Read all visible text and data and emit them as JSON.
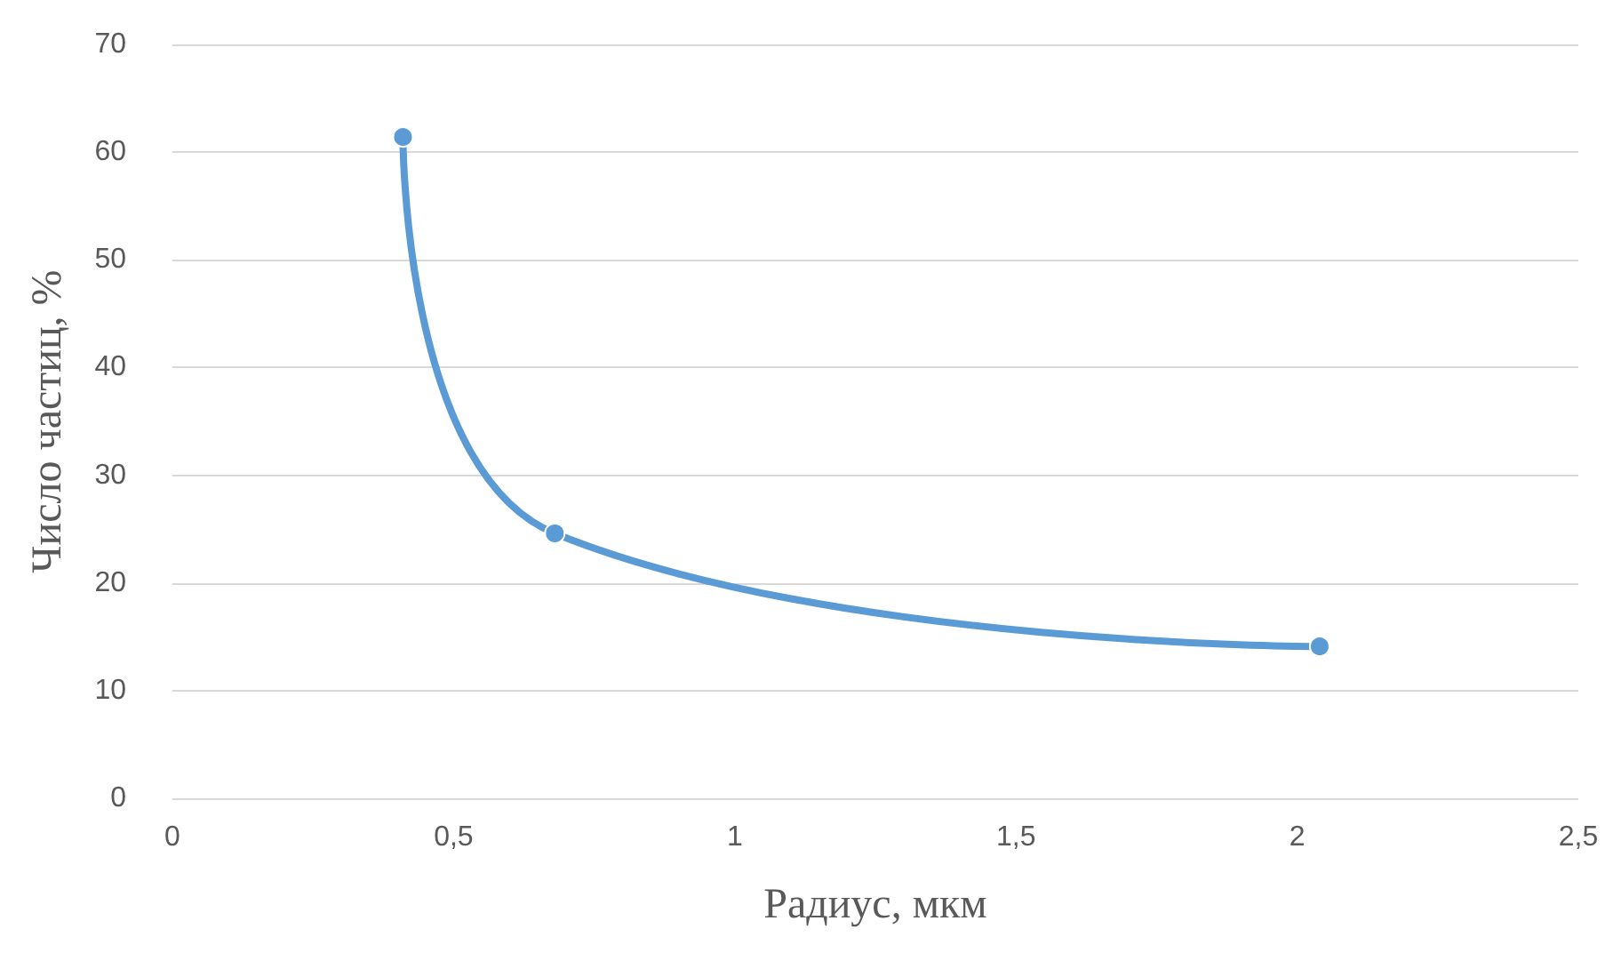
{
  "chart_data": {
    "type": "line",
    "xlabel": "Радиус, мкм",
    "ylabel": "Число частиц, %",
    "x": [
      0.41,
      0.68,
      2.04
    ],
    "series": [
      {
        "color": "#5b9bd5",
        "values": [
          61.4,
          24.6,
          14.1
        ]
      }
    ],
    "xlim": [
      0,
      2.5
    ],
    "xticks": [
      {
        "value": 0,
        "label": "0"
      },
      {
        "value": 0.5,
        "label": "0,5"
      },
      {
        "value": 1,
        "label": "1"
      },
      {
        "value": 1.5,
        "label": "1,5"
      },
      {
        "value": 2,
        "label": "2"
      },
      {
        "value": 2.5,
        "label": "2,5"
      }
    ],
    "ylim": [
      0,
      70
    ],
    "yticks": [
      0,
      10,
      20,
      30,
      40,
      50,
      60,
      70
    ],
    "grid": "y",
    "marker": "circle",
    "line_style": "solid"
  }
}
